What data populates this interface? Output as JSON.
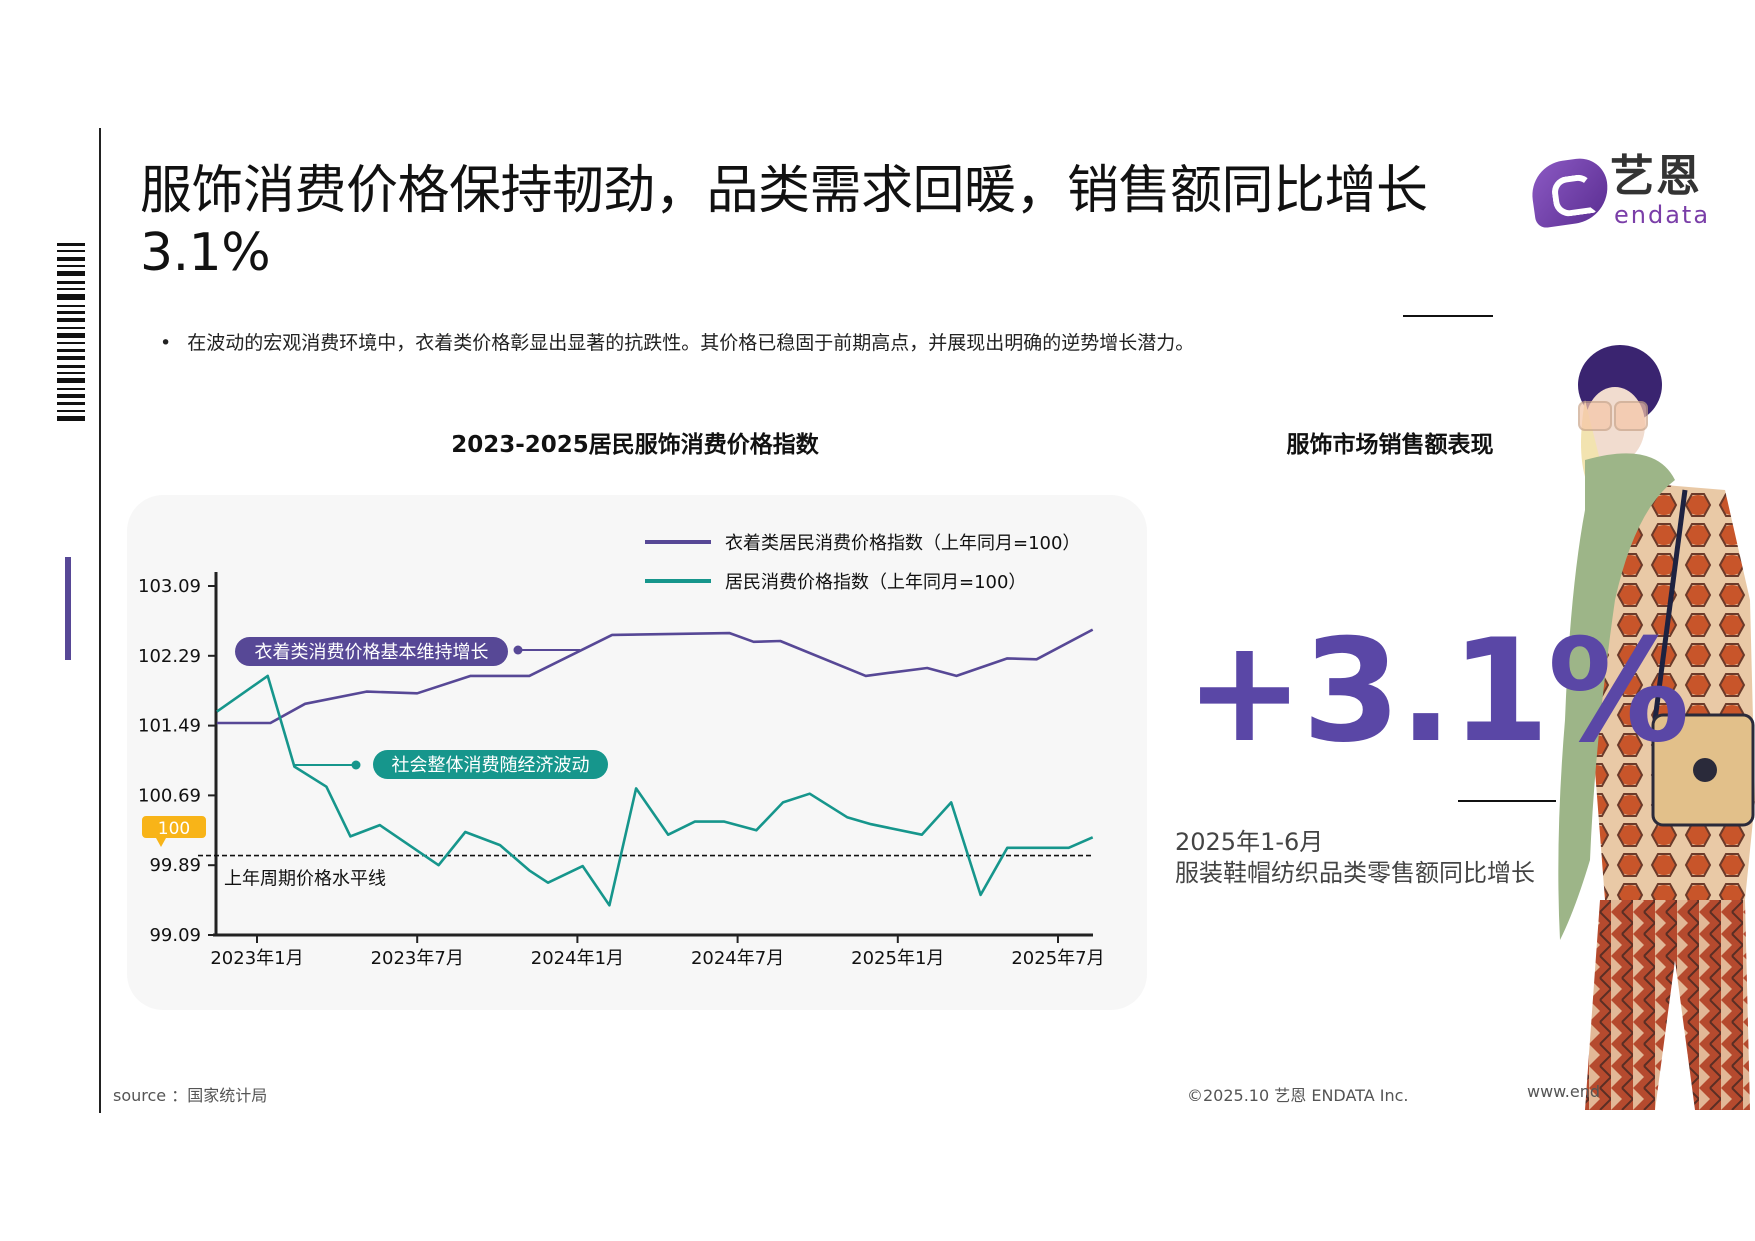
{
  "header": {
    "title_line1": "服饰消费价格保持韧劲，品类需求回暖，销售额同比增长",
    "title_line2": "3.1%",
    "logo": {
      "cn": "艺恩",
      "en": "endata",
      "icon": "endata-logo-icon"
    }
  },
  "bullet": {
    "marker": "•",
    "text": "在波动的宏观消费环境中，衣着类价格彰显出显著的抗跌性。其价格已稳固于前期高点，并展现出明确的逆势增长潜力。"
  },
  "colors": {
    "purple": "#574896",
    "teal": "#16968c",
    "badge": "#f8b418",
    "big_number": "#5a47a6",
    "card_bg": "#f7f7f7"
  },
  "chart_data": {
    "type": "line",
    "title": "2023-2025居民服饰消费价格指数",
    "xlabel": "",
    "ylabel": "",
    "ylim": [
      99.09,
      103.09
    ],
    "yticks": [
      "103.09",
      "102.29",
      "101.49",
      "100.69",
      "99.89",
      "99.09"
    ],
    "xticks": [
      {
        "label": "2023年1月",
        "t": 0
      },
      {
        "label": "2023年7月",
        "t": 6
      },
      {
        "label": "2024年1月",
        "t": 12
      },
      {
        "label": "2024年7月",
        "t": 18
      },
      {
        "label": "2025年1月",
        "t": 24
      },
      {
        "label": "2025年7月",
        "t": 30
      }
    ],
    "x_unit": "months offset from 2023年1月",
    "grid": false,
    "legend_position": "top-right",
    "reference_line": {
      "value": 100,
      "label": "上年周期价格水平线",
      "badge": "100",
      "style": "dashed"
    },
    "series": [
      {
        "name": "衣着类居民消费价格指数（上年同月=100）",
        "color": "#574896",
        "points": [
          [
            -1.5,
            101.52
          ],
          [
            0.5,
            101.52
          ],
          [
            1.8,
            101.74
          ],
          [
            4.1,
            101.88
          ],
          [
            6.0,
            101.86
          ],
          [
            8.0,
            102.06
          ],
          [
            10.2,
            102.06
          ],
          [
            13.3,
            102.53
          ],
          [
            17.7,
            102.55
          ],
          [
            18.6,
            102.45
          ],
          [
            19.6,
            102.46
          ],
          [
            22.8,
            102.06
          ],
          [
            23.8,
            102.1
          ],
          [
            25.1,
            102.15
          ],
          [
            26.2,
            102.06
          ],
          [
            28.1,
            102.26
          ],
          [
            29.2,
            102.25
          ],
          [
            31.3,
            102.59
          ]
        ]
      },
      {
        "name": "居民消费价格指数（上年同月=100）",
        "color": "#16968c",
        "points": [
          [
            -1.5,
            101.65
          ],
          [
            0.4,
            102.06
          ],
          [
            1.4,
            101.02
          ],
          [
            2.6,
            100.79
          ],
          [
            3.5,
            100.22
          ],
          [
            4.6,
            100.35
          ],
          [
            6.8,
            99.89
          ],
          [
            7.8,
            100.27
          ],
          [
            9.1,
            100.12
          ],
          [
            10.2,
            99.83
          ],
          [
            10.9,
            99.69
          ],
          [
            12.2,
            99.88
          ],
          [
            13.2,
            99.43
          ],
          [
            14.2,
            100.77
          ],
          [
            15.4,
            100.24
          ],
          [
            16.4,
            100.39
          ],
          [
            17.5,
            100.39
          ],
          [
            18.7,
            100.29
          ],
          [
            19.7,
            100.61
          ],
          [
            20.7,
            100.71
          ],
          [
            22.1,
            100.44
          ],
          [
            23.0,
            100.36
          ],
          [
            24.9,
            100.24
          ],
          [
            26.0,
            100.61
          ],
          [
            27.1,
            99.55
          ],
          [
            28.1,
            100.09
          ],
          [
            30.4,
            100.09
          ],
          [
            31.3,
            100.21
          ]
        ]
      }
    ],
    "annotations": [
      {
        "text": "衣着类消费价格基本维持增长",
        "series": 0
      },
      {
        "text": "社会整体消费随经济波动",
        "series": 1
      }
    ]
  },
  "side_panel": {
    "title": "服饰市场销售额表现",
    "big_value": "+3.1%",
    "caption_line1": "2025年1-6月",
    "caption_line2": "服装鞋帽纺织品类零售额同比增长"
  },
  "footer": {
    "source": "source ：国家统计局",
    "copyright": "©2025.10  艺恩 ENDATA Inc.",
    "website": "www.end"
  }
}
